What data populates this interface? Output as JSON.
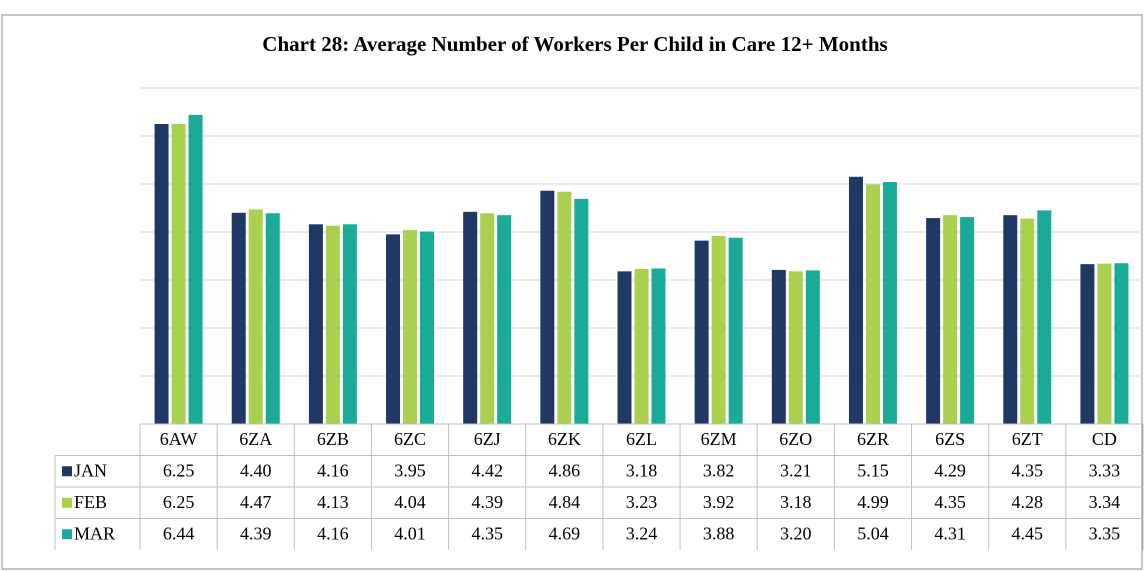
{
  "chart_data": {
    "type": "bar",
    "title": "Chart 28: Average Number of Workers Per Child in Care 12+ Months",
    "categories": [
      "6AW",
      "6ZA",
      "6ZB",
      "6ZC",
      "6ZJ",
      "6ZK",
      "6ZL",
      "6ZM",
      "6ZO",
      "6ZR",
      "6ZS",
      "6ZT",
      "CD"
    ],
    "series": [
      {
        "name": "JAN",
        "color": "#1f3864",
        "values": [
          6.25,
          4.4,
          4.16,
          3.95,
          4.42,
          4.86,
          3.18,
          3.82,
          3.21,
          5.15,
          4.29,
          4.35,
          3.33
        ],
        "value_labels": [
          "6.25",
          "4.40",
          "4.16",
          "3.95",
          "4.42",
          "4.86",
          "3.18",
          "3.82",
          "3.21",
          "5.15",
          "4.29",
          "4.35",
          "3.33"
        ]
      },
      {
        "name": "FEB",
        "color": "#a9d04f",
        "values": [
          6.25,
          4.47,
          4.13,
          4.04,
          4.39,
          4.84,
          3.23,
          3.92,
          3.18,
          4.99,
          4.35,
          4.28,
          3.34
        ],
        "value_labels": [
          "6.25",
          "4.47",
          "4.13",
          "4.04",
          "4.39",
          "4.84",
          "3.23",
          "3.92",
          "3.18",
          "4.99",
          "4.35",
          "4.28",
          "3.34"
        ]
      },
      {
        "name": "MAR",
        "color": "#1aab98",
        "values": [
          6.44,
          4.39,
          4.16,
          4.01,
          4.35,
          4.69,
          3.24,
          3.88,
          3.2,
          5.04,
          4.31,
          4.45,
          3.35
        ],
        "value_labels": [
          "6.44",
          "4.39",
          "4.16",
          "4.01",
          "4.35",
          "4.69",
          "3.24",
          "3.88",
          "3.20",
          "5.04",
          "4.31",
          "4.45",
          "3.35"
        ]
      }
    ],
    "ylim": [
      0,
      7
    ],
    "yticks": [
      0,
      1,
      2,
      3,
      4,
      5,
      6,
      7
    ],
    "grid": true
  }
}
